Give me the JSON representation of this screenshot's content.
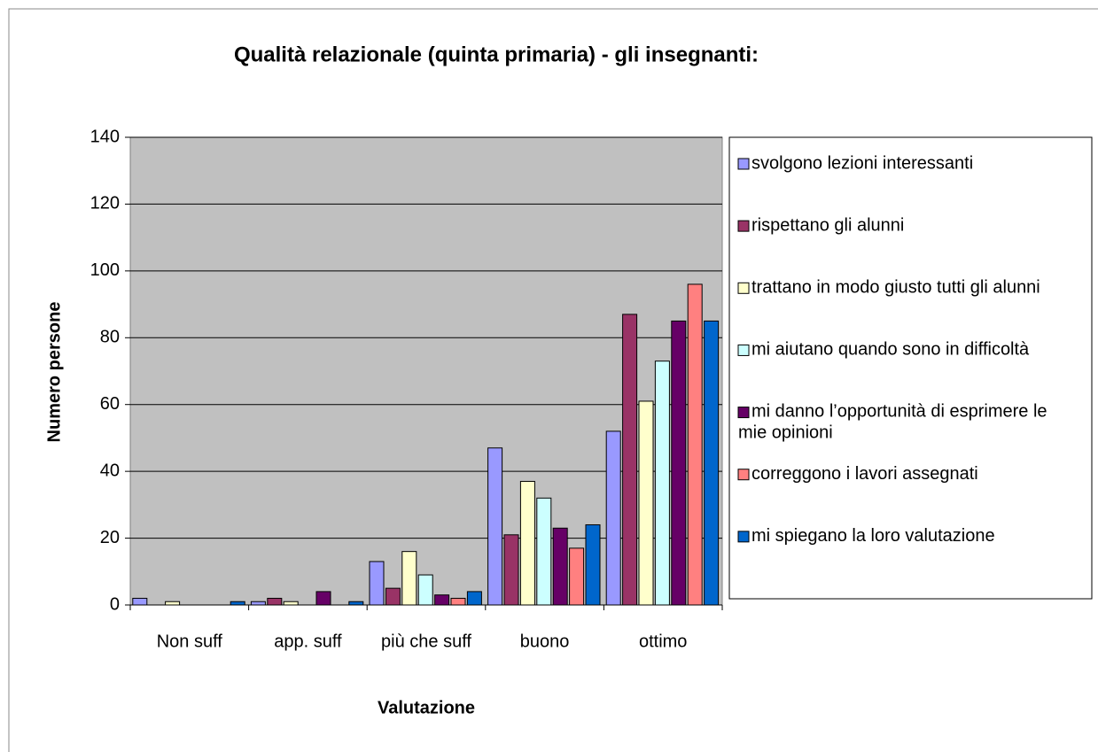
{
  "chart_data": {
    "type": "bar",
    "title": "Qualità relazionale (quinta primaria) - gli insegnanti:",
    "x_label": "Valutazione",
    "y_label": "Numero persone",
    "categories": [
      "Non suff",
      "app. suff",
      "più che suff",
      "buono",
      "ottimo"
    ],
    "series": [
      {
        "name": "svolgono lezioni interessanti",
        "color": "#9999ff",
        "values": [
          2,
          1,
          13,
          47,
          52
        ]
      },
      {
        "name": "rispettano gli alunni",
        "color": "#993366",
        "values": [
          0,
          2,
          5,
          21,
          87
        ]
      },
      {
        "name": "trattano in modo giusto tutti gli alunni",
        "color": "#ffffcc",
        "values": [
          1,
          1,
          16,
          37,
          61
        ]
      },
      {
        "name": "mi aiutano quando sono in difficoltà",
        "color": "#ccffff",
        "values": [
          0,
          0,
          9,
          32,
          73
        ]
      },
      {
        "name": "mi danno l’opportunità di esprimere le mie opinioni",
        "color": "#660066",
        "values": [
          0,
          4,
          3,
          23,
          85
        ]
      },
      {
        "name": "correggono i lavori assegnati",
        "color": "#ff8080",
        "values": [
          0,
          0,
          2,
          17,
          96
        ]
      },
      {
        "name": "mi spiegano la loro valutazione",
        "color": "#0066cc",
        "values": [
          1,
          1,
          4,
          24,
          85
        ]
      }
    ],
    "ylim": [
      0,
      140
    ],
    "yticks": [
      0,
      20,
      40,
      60,
      80,
      100,
      120,
      140
    ],
    "grid": true,
    "legend": "right"
  }
}
